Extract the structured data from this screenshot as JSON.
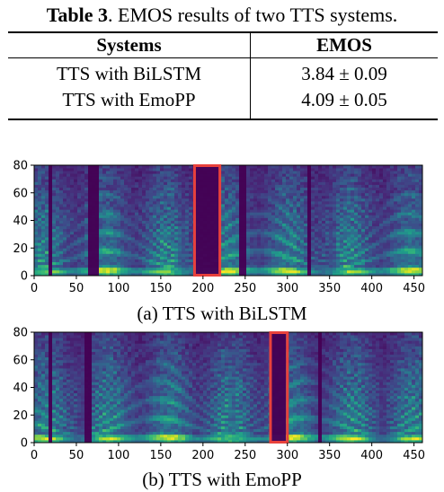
{
  "table": {
    "label": "Table 3",
    "caption": ". EMOS results of two TTS systems.",
    "headers": [
      "Systems",
      "EMOS"
    ],
    "rows": [
      {
        "system": "TTS with BiLSTM",
        "emos": "3.84 ± 0.09"
      },
      {
        "system": "TTS with EmoPP",
        "emos": "4.09 ± 0.05"
      }
    ]
  },
  "figures": [
    {
      "caption": "(a) TTS with BiLSTM",
      "highlight_frames": [
        190,
        220
      ]
    },
    {
      "caption": "(b) TTS with EmoPP",
      "highlight_frames": [
        280,
        300
      ]
    }
  ],
  "chart_data": [
    {
      "type": "heatmap",
      "x_ticks": [
        "0",
        "50",
        "100",
        "150",
        "200",
        "250",
        "300",
        "350",
        "400",
        "450"
      ],
      "y_ticks": [
        "0",
        "20",
        "40",
        "60",
        "80"
      ],
      "xlim": [
        0,
        460
      ],
      "ylim": [
        0,
        80
      ],
      "highlight_x_range": [
        190,
        220
      ],
      "highlight_color": "#e8413c"
    },
    {
      "type": "heatmap",
      "x_ticks": [
        "0",
        "50",
        "100",
        "150",
        "200",
        "250",
        "300",
        "350",
        "400",
        "450"
      ],
      "y_ticks": [
        "0",
        "20",
        "40",
        "60",
        "80"
      ],
      "xlim": [
        0,
        460
      ],
      "ylim": [
        0,
        80
      ],
      "highlight_x_range": [
        280,
        300
      ],
      "highlight_color": "#e8413c"
    }
  ],
  "colors": {
    "colormap": "viridis",
    "highlight": "#e8413c"
  }
}
